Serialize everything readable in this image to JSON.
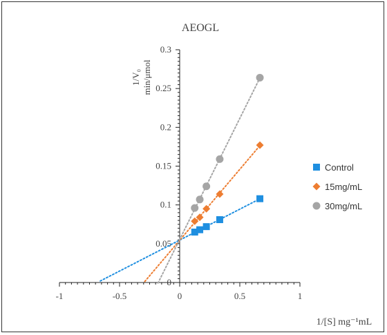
{
  "chart_data": {
    "type": "scatter",
    "title": "AEOGL",
    "ylabel": "1/V₀",
    "ylabel_units": "min/μmol",
    "xlabel": "1/[S] mg⁻¹mL",
    "xlim": [
      -1,
      1
    ],
    "ylim": [
      0,
      0.3
    ],
    "x_ticks": [
      "-1",
      "-0.5",
      "0",
      "0.5",
      "1"
    ],
    "y_ticks": [
      "0",
      "0.05",
      "0.1",
      "0.15",
      "0.2",
      "0.25",
      "0.3"
    ],
    "series": [
      {
        "name": "Control",
        "marker": "square",
        "color": "#1f8fe0",
        "x": [
          0.125,
          0.167,
          0.222,
          0.333,
          0.667
        ],
        "y": [
          0.065,
          0.068,
          0.072,
          0.081,
          0.108
        ],
        "trend_from": -0.66
      },
      {
        "name": "15mg/mL",
        "marker": "diamond",
        "color": "#ed7d31",
        "x": [
          0.125,
          0.167,
          0.222,
          0.333,
          0.667
        ],
        "y": [
          0.079,
          0.084,
          0.095,
          0.114,
          0.177
        ],
        "trend_from": -0.29
      },
      {
        "name": "30mg/mL",
        "marker": "circle",
        "color": "#a5a5a5",
        "x": [
          0.125,
          0.167,
          0.222,
          0.333,
          0.667
        ],
        "y": [
          0.096,
          0.107,
          0.124,
          0.159,
          0.264
        ],
        "trend_from": -0.18
      }
    ],
    "legend_position": "right",
    "grid": false
  }
}
